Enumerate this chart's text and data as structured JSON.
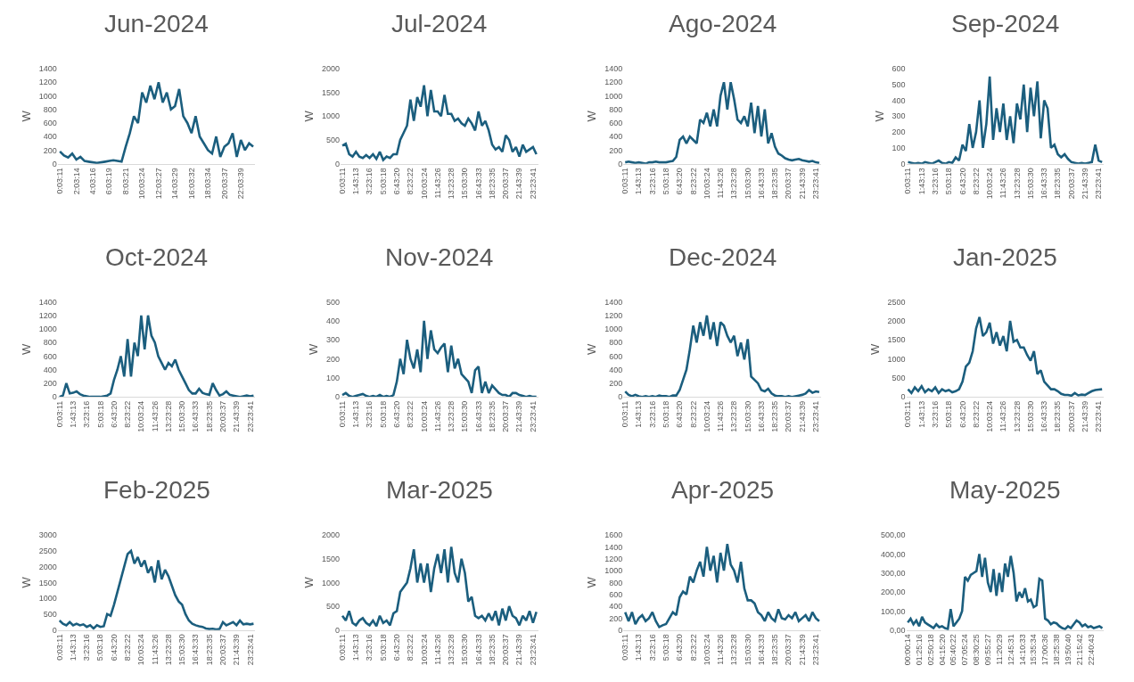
{
  "chart_data": [
    {
      "type": "line",
      "title": "Jun-2024",
      "ylabel": "W",
      "color": "#1b5e7e",
      "ylim": [
        0,
        1400
      ],
      "yticks": [
        0,
        200,
        400,
        600,
        800,
        1000,
        1200,
        1400
      ],
      "categories": [
        "0:03:11",
        null,
        null,
        null,
        "2:03:14",
        null,
        null,
        null,
        "4:03:16",
        null,
        null,
        null,
        "6:03:19",
        null,
        null,
        null,
        "8:03:21",
        null,
        null,
        null,
        "10:03:24",
        null,
        null,
        null,
        "12:03:27",
        null,
        null,
        null,
        "14:03:29",
        null,
        null,
        null,
        "16:03:32",
        null,
        null,
        null,
        "18:03:34",
        null,
        null,
        null,
        "20:03:37",
        null,
        null,
        null,
        "22:03:39",
        null,
        null,
        null
      ],
      "values": [
        180,
        120,
        90,
        150,
        60,
        100,
        40,
        30,
        20,
        10,
        20,
        30,
        40,
        50,
        40,
        30,
        250,
        450,
        700,
        600,
        1050,
        900,
        1150,
        950,
        1200,
        900,
        1050,
        800,
        850,
        1100,
        700,
        600,
        450,
        700,
        400,
        300,
        200,
        150,
        400,
        100,
        250,
        300,
        450,
        100,
        350,
        200,
        300,
        250
      ]
    },
    {
      "type": "line",
      "title": "Jul-2024",
      "ylabel": "W",
      "color": "#1b5e7e",
      "ylim": [
        0,
        2000
      ],
      "yticks": [
        0,
        500,
        1000,
        1500,
        2000
      ],
      "categories": [
        "0:03:11",
        null,
        null,
        null,
        "1:43:13",
        null,
        null,
        null,
        "3:23:16",
        null,
        null,
        null,
        "5:03:18",
        null,
        null,
        null,
        "6:43:20",
        null,
        null,
        null,
        "8:23:22",
        null,
        null,
        null,
        "10:03:24",
        null,
        null,
        null,
        "11:43:26",
        null,
        null,
        null,
        "13:23:28",
        null,
        null,
        null,
        "15:03:30",
        null,
        null,
        null,
        "16:43:33",
        null,
        null,
        null,
        "18:23:35",
        null,
        null,
        null,
        "20:03:37",
        null,
        null,
        null,
        "21:43:39",
        null,
        null,
        null,
        "23:23:41",
        null
      ],
      "values": [
        380,
        420,
        200,
        150,
        250,
        150,
        120,
        180,
        120,
        200,
        100,
        250,
        80,
        150,
        120,
        200,
        200,
        500,
        650,
        800,
        1350,
        900,
        1400,
        1200,
        1650,
        1000,
        1550,
        1100,
        1100,
        1000,
        1450,
        1050,
        1050,
        900,
        950,
        850,
        800,
        950,
        850,
        700,
        1100,
        800,
        900,
        700,
        400,
        300,
        350,
        250,
        600,
        500,
        250,
        350,
        150,
        400,
        250,
        300,
        350,
        200
      ]
    },
    {
      "type": "line",
      "title": "Ago-2024",
      "ylabel": "W",
      "color": "#1b5e7e",
      "ylim": [
        0,
        1400
      ],
      "yticks": [
        0,
        200,
        400,
        600,
        800,
        1000,
        1200,
        1400
      ],
      "categories": [
        "0:03:11",
        null,
        null,
        null,
        "1:43:13",
        null,
        null,
        null,
        "3:23:16",
        null,
        null,
        null,
        "5:03:18",
        null,
        null,
        null,
        "6:43:20",
        null,
        null,
        null,
        "8:23:22",
        null,
        null,
        null,
        "10:03:24",
        null,
        null,
        null,
        "11:43:26",
        null,
        null,
        null,
        "13:23:28",
        null,
        null,
        null,
        "15:03:30",
        null,
        null,
        null,
        "16:43:33",
        null,
        null,
        null,
        "18:23:35",
        null,
        null,
        null,
        "20:03:37",
        null,
        null,
        null,
        "21:43:39",
        null,
        null,
        null,
        "23:23:41",
        null
      ],
      "values": [
        20,
        30,
        20,
        10,
        20,
        10,
        0,
        20,
        20,
        30,
        20,
        20,
        20,
        30,
        40,
        100,
        350,
        400,
        300,
        400,
        350,
        300,
        650,
        600,
        750,
        550,
        800,
        550,
        1000,
        1200,
        800,
        1200,
        950,
        650,
        600,
        700,
        550,
        900,
        450,
        850,
        400,
        800,
        300,
        450,
        250,
        150,
        120,
        80,
        60,
        50,
        60,
        70,
        50,
        40,
        30,
        40,
        20,
        10
      ]
    },
    {
      "type": "line",
      "title": "Sep-2024",
      "ylabel": "W",
      "color": "#1b5e7e",
      "ylim": [
        0,
        600
      ],
      "yticks": [
        0,
        100,
        200,
        300,
        400,
        500,
        600
      ],
      "categories": [
        "0:03:11",
        null,
        null,
        null,
        "1:43:13",
        null,
        null,
        null,
        "3:23:16",
        null,
        null,
        null,
        "5:03:18",
        null,
        null,
        null,
        "6:43:20",
        null,
        null,
        null,
        "8:23:22",
        null,
        null,
        null,
        "10:03:24",
        null,
        null,
        null,
        "11:43:26",
        null,
        null,
        null,
        "13:23:28",
        null,
        null,
        null,
        "15:03:30",
        null,
        null,
        null,
        "16:43:33",
        null,
        null,
        null,
        "18:23:35",
        null,
        null,
        null,
        "20:03:37",
        null,
        null,
        null,
        "21:43:39",
        null,
        null,
        null,
        "23:23:41",
        null
      ],
      "values": [
        10,
        5,
        0,
        5,
        0,
        10,
        5,
        0,
        10,
        20,
        5,
        0,
        10,
        5,
        40,
        20,
        120,
        80,
        250,
        100,
        200,
        400,
        100,
        250,
        550,
        150,
        350,
        200,
        380,
        150,
        300,
        130,
        380,
        280,
        500,
        200,
        480,
        300,
        520,
        160,
        400,
        350,
        100,
        120,
        60,
        40,
        60,
        30,
        10,
        5,
        0,
        5,
        0,
        5,
        10,
        120,
        20,
        10
      ]
    },
    {
      "type": "line",
      "title": "Oct-2024",
      "ylabel": "W",
      "color": "#1b5e7e",
      "ylim": [
        0,
        1400
      ],
      "yticks": [
        0,
        200,
        400,
        600,
        800,
        1000,
        1200,
        1400
      ],
      "categories": [
        "0:03:11",
        null,
        null,
        null,
        "1:43:13",
        null,
        null,
        null,
        "3:23:16",
        null,
        null,
        null,
        "5:03:18",
        null,
        null,
        null,
        "6:43:20",
        null,
        null,
        null,
        "8:23:22",
        null,
        null,
        null,
        "10:03:24",
        null,
        null,
        null,
        "11:43:26",
        null,
        null,
        null,
        "13:23:28",
        null,
        null,
        null,
        "15:03:30",
        null,
        null,
        null,
        "16:43:33",
        null,
        null,
        null,
        "18:23:35",
        null,
        null,
        null,
        "20:03:37",
        null,
        null,
        null,
        "21:43:39",
        null,
        null,
        null,
        "23:23:41",
        null
      ],
      "values": [
        0,
        20,
        200,
        50,
        60,
        80,
        40,
        20,
        10,
        0,
        0,
        0,
        0,
        10,
        20,
        50,
        250,
        400,
        600,
        300,
        850,
        300,
        800,
        600,
        1200,
        700,
        1200,
        900,
        800,
        600,
        500,
        400,
        500,
        450,
        550,
        400,
        300,
        200,
        100,
        50,
        50,
        120,
        60,
        40,
        30,
        200,
        100,
        20,
        40,
        80,
        30,
        20,
        10,
        0,
        10,
        20,
        10,
        20
      ]
    },
    {
      "type": "line",
      "title": "Nov-2024",
      "ylabel": "W",
      "color": "#1b5e7e",
      "ylim": [
        0,
        500
      ],
      "yticks": [
        0,
        100,
        200,
        300,
        400,
        500
      ],
      "categories": [
        "0:03:11",
        null,
        null,
        null,
        "1:43:13",
        null,
        null,
        null,
        "3:23:16",
        null,
        null,
        null,
        "5:03:18",
        null,
        null,
        null,
        "6:43:20",
        null,
        null,
        null,
        "8:23:22",
        null,
        null,
        null,
        "10:03:24",
        null,
        null,
        null,
        "11:43:26",
        null,
        null,
        null,
        "13:23:28",
        null,
        null,
        null,
        "15:03:30",
        null,
        null,
        null,
        "16:43:33",
        null,
        null,
        null,
        "18:23:35",
        null,
        null,
        null,
        "20:03:37",
        null,
        null,
        null,
        "21:43:39",
        null,
        null,
        null,
        "23:23:41",
        null
      ],
      "values": [
        10,
        20,
        5,
        0,
        5,
        10,
        15,
        5,
        0,
        5,
        0,
        10,
        0,
        5,
        0,
        10,
        80,
        200,
        120,
        300,
        200,
        150,
        250,
        130,
        400,
        200,
        350,
        250,
        230,
        260,
        280,
        130,
        270,
        150,
        200,
        120,
        100,
        80,
        20,
        140,
        160,
        20,
        80,
        20,
        60,
        40,
        20,
        10,
        10,
        0,
        20,
        20,
        10,
        5,
        0,
        5,
        0,
        0
      ]
    },
    {
      "type": "line",
      "title": "Dec-2024",
      "ylabel": "W",
      "color": "#1b5e7e",
      "ylim": [
        0,
        1400
      ],
      "yticks": [
        0,
        200,
        400,
        600,
        800,
        1000,
        1200,
        1400
      ],
      "categories": [
        "0:03:11",
        null,
        null,
        null,
        "1:43:13",
        null,
        null,
        null,
        "3:23:16",
        null,
        null,
        null,
        "5:03:18",
        null,
        null,
        null,
        "6:43:20",
        null,
        null,
        null,
        "8:23:22",
        null,
        null,
        null,
        "10:03:24",
        null,
        null,
        null,
        "11:43:26",
        null,
        null,
        null,
        "13:23:28",
        null,
        null,
        null,
        "15:03:30",
        null,
        null,
        null,
        "16:43:33",
        null,
        null,
        null,
        "18:23:35",
        null,
        null,
        null,
        "20:03:37",
        null,
        null,
        null,
        "21:43:39",
        null,
        null,
        null,
        "23:23:41",
        null
      ],
      "values": [
        80,
        30,
        10,
        30,
        10,
        0,
        10,
        0,
        10,
        0,
        20,
        10,
        10,
        0,
        20,
        20,
        100,
        250,
        400,
        700,
        1050,
        800,
        1100,
        900,
        1200,
        850,
        1100,
        750,
        1100,
        1050,
        900,
        800,
        900,
        600,
        800,
        550,
        850,
        300,
        250,
        200,
        100,
        80,
        120,
        50,
        20,
        10,
        10,
        0,
        10,
        0,
        10,
        20,
        30,
        50,
        100,
        60,
        80,
        70
      ]
    },
    {
      "type": "line",
      "title": "Jan-2025",
      "ylabel": "W",
      "color": "#1b5e7e",
      "ylim": [
        0,
        2500
      ],
      "yticks": [
        0,
        500,
        1000,
        1500,
        2000,
        2500
      ],
      "categories": [
        "0:03:11",
        null,
        null,
        null,
        "1:43:13",
        null,
        null,
        null,
        "3:23:16",
        null,
        null,
        null,
        "5:03:18",
        null,
        null,
        null,
        "6:43:20",
        null,
        null,
        null,
        "8:23:22",
        null,
        null,
        null,
        "10:03:24",
        null,
        null,
        null,
        "11:43:26",
        null,
        null,
        null,
        "13:23:28",
        null,
        null,
        null,
        "15:03:30",
        null,
        null,
        null,
        "16:43:33",
        null,
        null,
        null,
        "18:23:35",
        null,
        null,
        null,
        "20:03:37",
        null,
        null,
        null,
        "21:43:39",
        null,
        null,
        null,
        "23:23:41",
        null
      ],
      "values": [
        200,
        100,
        250,
        150,
        280,
        120,
        200,
        150,
        250,
        100,
        200,
        150,
        180,
        120,
        150,
        200,
        400,
        800,
        900,
        1200,
        1800,
        2100,
        1600,
        1700,
        1950,
        1400,
        1700,
        1350,
        1600,
        1200,
        2000,
        1450,
        1500,
        1300,
        1300,
        1100,
        950,
        1200,
        600,
        700,
        400,
        300,
        200,
        200,
        150,
        80,
        50,
        50,
        30,
        100,
        40,
        60,
        50,
        100,
        150,
        180,
        190,
        200
      ]
    },
    {
      "type": "line",
      "title": "Feb-2025",
      "ylabel": "W",
      "color": "#1b5e7e",
      "ylim": [
        0,
        3000
      ],
      "yticks": [
        0,
        500,
        1000,
        1500,
        2000,
        2500,
        3000
      ],
      "categories": [
        "0:03:11",
        null,
        null,
        null,
        "1:43:13",
        null,
        null,
        null,
        "3:23:16",
        null,
        null,
        null,
        "5:03:18",
        null,
        null,
        null,
        "6:43:20",
        null,
        null,
        null,
        "8:23:22",
        null,
        null,
        null,
        "10:03:24",
        null,
        null,
        null,
        "11:43:26",
        null,
        null,
        null,
        "13:23:28",
        null,
        null,
        null,
        "15:03:30",
        null,
        null,
        null,
        "16:43:33",
        null,
        null,
        null,
        "18:23:35",
        null,
        null,
        null,
        "20:03:37",
        null,
        null,
        null,
        "21:43:39",
        null,
        null,
        null,
        "23:23:41",
        null
      ],
      "values": [
        300,
        200,
        150,
        250,
        150,
        200,
        150,
        180,
        100,
        150,
        50,
        150,
        100,
        120,
        500,
        450,
        800,
        1200,
        1600,
        2000,
        2400,
        2500,
        2100,
        2300,
        2000,
        2200,
        1800,
        2000,
        1500,
        2200,
        1600,
        1900,
        1700,
        1400,
        1100,
        900,
        800,
        500,
        300,
        200,
        150,
        120,
        100,
        50,
        30,
        40,
        20,
        30,
        250,
        150,
        200,
        250,
        150,
        300,
        180,
        200,
        180,
        200
      ]
    },
    {
      "type": "line",
      "title": "Mar-2025",
      "ylabel": "W",
      "color": "#1b5e7e",
      "ylim": [
        0,
        2000
      ],
      "yticks": [
        0,
        500,
        1000,
        1500,
        2000
      ],
      "categories": [
        "0:03:11",
        null,
        null,
        null,
        "1:43:13",
        null,
        null,
        null,
        "3:23:16",
        null,
        null,
        null,
        "5:03:18",
        null,
        null,
        null,
        "6:43:20",
        null,
        null,
        null,
        "8:23:22",
        null,
        null,
        null,
        "10:03:24",
        null,
        null,
        null,
        "11:43:26",
        null,
        null,
        null,
        "13:23:28",
        null,
        null,
        null,
        "15:03:30",
        null,
        null,
        null,
        "16:43:33",
        null,
        null,
        null,
        "18:23:35",
        null,
        null,
        null,
        "20:03:37",
        null,
        null,
        null,
        "21:43:39",
        null,
        null,
        null,
        "23:23:41",
        null
      ],
      "values": [
        300,
        200,
        400,
        150,
        100,
        200,
        250,
        150,
        100,
        200,
        80,
        300,
        150,
        200,
        100,
        350,
        400,
        800,
        900,
        1000,
        1300,
        1700,
        1000,
        1400,
        1000,
        1400,
        800,
        1300,
        1600,
        1200,
        1700,
        1000,
        1750,
        1200,
        1000,
        1500,
        1200,
        600,
        700,
        300,
        250,
        300,
        200,
        350,
        200,
        400,
        100,
        450,
        200,
        500,
        300,
        250,
        100,
        300,
        200,
        400,
        150,
        380
      ]
    },
    {
      "type": "line",
      "title": "Apr-2025",
      "ylabel": "W",
      "color": "#1b5e7e",
      "ylim": [
        0,
        1600
      ],
      "yticks": [
        0,
        200,
        400,
        600,
        800,
        1000,
        1200,
        1400,
        1600
      ],
      "categories": [
        "0:03:11",
        null,
        null,
        null,
        "1:43:13",
        null,
        null,
        null,
        "3:23:16",
        null,
        null,
        null,
        "5:03:18",
        null,
        null,
        null,
        "6:43:20",
        null,
        null,
        null,
        "8:23:22",
        null,
        null,
        null,
        "10:03:24",
        null,
        null,
        null,
        "11:43:26",
        null,
        null,
        null,
        "13:23:28",
        null,
        null,
        null,
        "15:03:30",
        null,
        null,
        null,
        "16:43:33",
        null,
        null,
        null,
        "18:23:35",
        null,
        null,
        null,
        "20:03:37",
        null,
        null,
        null,
        "21:43:39",
        null,
        null,
        null,
        "23:23:41",
        null
      ],
      "values": [
        300,
        150,
        300,
        100,
        200,
        250,
        150,
        200,
        300,
        150,
        50,
        80,
        100,
        200,
        300,
        250,
        550,
        650,
        600,
        900,
        800,
        1000,
        1150,
        900,
        1400,
        1000,
        1250,
        800,
        1300,
        1000,
        1450,
        1100,
        1000,
        800,
        1150,
        700,
        500,
        500,
        450,
        300,
        250,
        150,
        300,
        200,
        150,
        350,
        200,
        180,
        250,
        200,
        300,
        150,
        200,
        250,
        150,
        300,
        200,
        150
      ]
    },
    {
      "type": "line",
      "title": "May-2025",
      "color": "#1b5e7e",
      "ylim": [
        0,
        500
      ],
      "yticks": [
        {
          "value": 0,
          "label": "0,00"
        },
        {
          "value": 100,
          "label": "100,00"
        },
        {
          "value": 200,
          "label": "200,00"
        },
        {
          "value": 300,
          "label": "300,00"
        },
        {
          "value": 400,
          "label": "400,00"
        },
        {
          "value": 500,
          "label": "500,00"
        }
      ],
      "categories": [
        "00:00:14",
        null,
        null,
        null,
        "01:25:16",
        null,
        null,
        null,
        "02:50:18",
        null,
        null,
        null,
        "04:15:20",
        null,
        null,
        null,
        "05:40:22",
        null,
        null,
        null,
        "07:05:24",
        null,
        null,
        null,
        "08:30:25",
        null,
        null,
        null,
        "09:55:27",
        null,
        null,
        null,
        "11:20:29",
        null,
        null,
        null,
        "12:45:31",
        null,
        null,
        null,
        "14:10:33",
        null,
        null,
        null,
        "15:35:34",
        null,
        null,
        null,
        "17:00:36",
        null,
        null,
        null,
        "18:25:38",
        null,
        null,
        null,
        "19:50:40",
        null,
        null,
        null,
        "21:15:42",
        null,
        null,
        null,
        "22:40:43",
        null,
        null,
        null,
        null
      ],
      "values": [
        40,
        60,
        30,
        50,
        20,
        70,
        40,
        30,
        20,
        10,
        30,
        15,
        20,
        10,
        5,
        110,
        20,
        40,
        60,
        100,
        280,
        260,
        290,
        300,
        310,
        400,
        280,
        380,
        250,
        200,
        320,
        180,
        300,
        200,
        350,
        280,
        390,
        300,
        150,
        200,
        170,
        220,
        150,
        160,
        120,
        130,
        270,
        260,
        60,
        50,
        30,
        40,
        35,
        20,
        10,
        5,
        20,
        10,
        30,
        50,
        40,
        20,
        30,
        15,
        20,
        10,
        15,
        20,
        10
      ]
    }
  ]
}
